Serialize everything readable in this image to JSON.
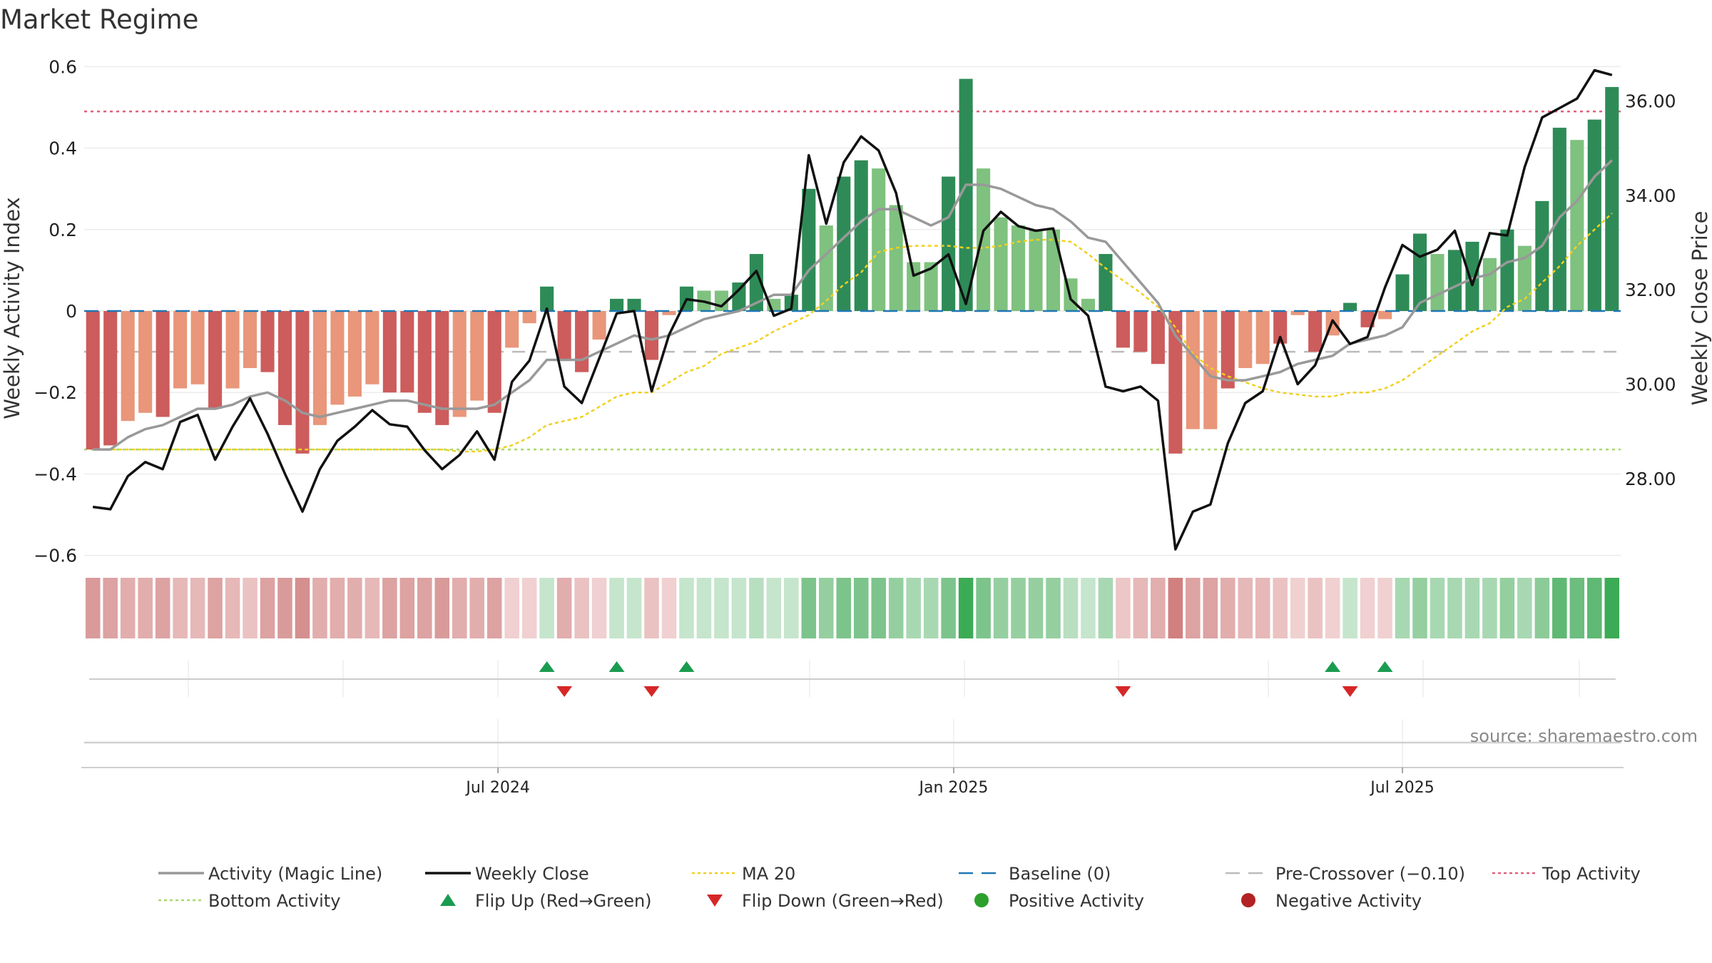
{
  "title": "Market Regime",
  "source": "source: sharemaestro.com",
  "colors": {
    "bar_dark_green": "#2e8b57",
    "bar_light_green": "#7fc17f",
    "bar_dark_red": "#cd5c5c",
    "bar_light_red": "#e9967a",
    "activity_line": "#999999",
    "close_line": "#111111",
    "ma20": "#f0d020",
    "baseline": "#1f77b4",
    "pre_crossover": "#bbbbbb",
    "top_activity": "#e0607e",
    "bottom_activity": "#a8d86e",
    "flip_up": "#1a9c50",
    "flip_down": "#d62728",
    "positive": "#2ca02c",
    "negative": "#b22222"
  },
  "chart_data": {
    "type": "bar",
    "title": "Market Regime",
    "ylabel": "Weekly Activity Index",
    "y2label": "Weekly Close Price",
    "ylim": [
      -0.62,
      0.62
    ],
    "y2lim": [
      26.2,
      36.9
    ],
    "yticks": [
      "0.6",
      "0.4",
      "0.2",
      "0",
      "−0.2",
      "−0.4",
      "−0.6"
    ],
    "ytick_values": [
      0.6,
      0.4,
      0.2,
      0,
      -0.2,
      -0.4,
      -0.6
    ],
    "y2ticks": [
      "36.00",
      "34.00",
      "32.00",
      "30.00",
      "28.00"
    ],
    "y2tick_values": [
      36,
      34,
      32,
      30,
      28
    ],
    "xticks": [
      "Jul 2024",
      "Jan 2025",
      "Jul 2025"
    ],
    "xtick_index": [
      23.2,
      49.3,
      75.0
    ],
    "top_activity": 0.49,
    "bottom_activity": -0.34,
    "pre_crossover": -0.1,
    "baseline": 0,
    "grid": true,
    "legend_position": "bottom",
    "legend": [
      {
        "label": "Activity (Magic Line)",
        "style": "line",
        "color": "#999999"
      },
      {
        "label": "Weekly Close",
        "style": "line",
        "color": "#111111"
      },
      {
        "label": "MA 20",
        "style": "dotted",
        "color": "#f0d020"
      },
      {
        "label": "Baseline (0)",
        "style": "dashed",
        "color": "#1f77b4"
      },
      {
        "label": "Pre-Crossover (−0.10)",
        "style": "dashed",
        "color": "#bbbbbb"
      },
      {
        "label": "Top Activity",
        "style": "dotted",
        "color": "#e0607e"
      },
      {
        "label": "Bottom Activity",
        "style": "dotted",
        "color": "#a8d86e"
      },
      {
        "label": "Flip Up (Red→Green)",
        "style": "triangle-up",
        "color": "#1a9c50"
      },
      {
        "label": "Flip Down (Green→Red)",
        "style": "triangle-down",
        "color": "#d62728"
      },
      {
        "label": "Positive Activity",
        "style": "circle",
        "color": "#2ca02c"
      },
      {
        "label": "Negative Activity",
        "style": "circle",
        "color": "#b22222"
      }
    ],
    "bars": [
      -0.34,
      -0.33,
      -0.27,
      -0.25,
      -0.26,
      -0.19,
      -0.18,
      -0.24,
      -0.19,
      -0.14,
      -0.15,
      -0.28,
      -0.35,
      -0.28,
      -0.23,
      -0.21,
      -0.18,
      -0.2,
      -0.2,
      -0.25,
      -0.28,
      -0.26,
      -0.22,
      -0.25,
      -0.09,
      -0.03,
      0.06,
      -0.12,
      -0.15,
      -0.07,
      0.03,
      0.03,
      -0.12,
      -0.01,
      0.06,
      0.05,
      0.05,
      0.07,
      0.14,
      0.03,
      0.04,
      0.3,
      0.21,
      0.33,
      0.37,
      0.35,
      0.26,
      0.12,
      0.12,
      0.33,
      0.57,
      0.35,
      0.23,
      0.21,
      0.2,
      0.2,
      0.08,
      0.03,
      0.14,
      -0.09,
      -0.1,
      -0.13,
      -0.35,
      -0.29,
      -0.29,
      -0.19,
      -0.14,
      -0.13,
      -0.08,
      -0.01,
      -0.1,
      -0.06,
      0.02,
      -0.04,
      -0.02,
      0.09,
      0.19,
      0.14,
      0.15,
      0.17,
      0.13,
      0.2,
      0.16,
      0.27,
      0.45,
      0.42,
      0.47,
      0.55
    ],
    "bar_shades": [
      "dark",
      "dark",
      "light",
      "light",
      "dark",
      "light",
      "light",
      "dark",
      "light",
      "light",
      "dark",
      "dark",
      "dark",
      "light",
      "light",
      "light",
      "light",
      "dark",
      "dark",
      "dark",
      "dark",
      "light",
      "light",
      "dark",
      "light",
      "light",
      "dark",
      "dark",
      "dark",
      "light",
      "dark",
      "dark",
      "dark",
      "light",
      "dark",
      "light",
      "light",
      "dark",
      "dark",
      "light",
      "dark",
      "dark",
      "light",
      "dark",
      "dark",
      "light",
      "light",
      "light",
      "light",
      "dark",
      "dark",
      "light",
      "light",
      "light",
      "light",
      "light",
      "light",
      "light",
      "dark",
      "dark",
      "dark",
      "dark",
      "dark",
      "light",
      "light",
      "dark",
      "light",
      "light",
      "dark",
      "light",
      "dark",
      "light",
      "dark",
      "dark",
      "light",
      "dark",
      "dark",
      "light",
      "dark",
      "dark",
      "light",
      "dark",
      "light",
      "dark",
      "dark",
      "light",
      "dark",
      "dark"
    ],
    "activity_line": [
      -0.34,
      -0.34,
      -0.31,
      -0.29,
      -0.28,
      -0.26,
      -0.24,
      -0.24,
      -0.23,
      -0.21,
      -0.2,
      -0.22,
      -0.25,
      -0.26,
      -0.25,
      -0.24,
      -0.23,
      -0.22,
      -0.22,
      -0.23,
      -0.24,
      -0.24,
      -0.24,
      -0.23,
      -0.2,
      -0.17,
      -0.12,
      -0.12,
      -0.12,
      -0.1,
      -0.08,
      -0.06,
      -0.07,
      -0.06,
      -0.04,
      -0.02,
      -0.01,
      0.0,
      0.02,
      0.04,
      0.04,
      0.1,
      0.14,
      0.18,
      0.22,
      0.25,
      0.25,
      0.23,
      0.21,
      0.23,
      0.31,
      0.31,
      0.3,
      0.28,
      0.26,
      0.25,
      0.22,
      0.18,
      0.17,
      0.12,
      0.07,
      0.02,
      -0.06,
      -0.11,
      -0.16,
      -0.17,
      -0.17,
      -0.16,
      -0.15,
      -0.13,
      -0.12,
      -0.11,
      -0.08,
      -0.07,
      -0.06,
      -0.04,
      0.02,
      0.04,
      0.06,
      0.08,
      0.09,
      0.12,
      0.13,
      0.16,
      0.23,
      0.27,
      0.33,
      0.37
    ],
    "weekly_close": [
      27.4,
      27.35,
      28.05,
      28.35,
      28.2,
      29.2,
      29.35,
      28.4,
      29.1,
      29.7,
      28.95,
      28.1,
      27.3,
      28.2,
      28.8,
      29.1,
      29.45,
      29.15,
      29.1,
      28.6,
      28.2,
      28.5,
      29.0,
      28.4,
      30.05,
      30.5,
      31.6,
      29.95,
      29.6,
      30.55,
      31.5,
      31.55,
      29.85,
      31.05,
      31.8,
      31.75,
      31.65,
      32.0,
      32.4,
      31.45,
      31.6,
      34.85,
      33.4,
      34.7,
      35.25,
      34.95,
      34.05,
      32.3,
      32.45,
      32.75,
      31.7,
      33.25,
      33.65,
      33.35,
      33.25,
      33.3,
      31.8,
      31.45,
      29.95,
      29.85,
      29.95,
      29.65,
      26.5,
      27.3,
      27.45,
      28.75,
      29.6,
      29.85,
      31.0,
      30.0,
      30.4,
      31.35,
      30.85,
      31.0,
      32.05,
      32.95,
      32.7,
      32.85,
      33.25,
      32.1,
      33.2,
      33.15,
      34.6,
      35.65,
      35.85,
      36.05,
      36.65,
      36.55
    ],
    "ma20": [
      -0.34,
      -0.34,
      -0.34,
      -0.34,
      -0.34,
      -0.34,
      -0.34,
      -0.34,
      -0.34,
      -0.34,
      -0.34,
      -0.34,
      -0.34,
      -0.34,
      -0.34,
      -0.34,
      -0.34,
      -0.34,
      -0.34,
      -0.34,
      -0.34,
      -0.345,
      -0.345,
      -0.34,
      -0.33,
      -0.31,
      -0.28,
      -0.27,
      -0.26,
      -0.235,
      -0.21,
      -0.2,
      -0.2,
      -0.175,
      -0.15,
      -0.135,
      -0.105,
      -0.09,
      -0.075,
      -0.05,
      -0.03,
      -0.01,
      0.025,
      0.065,
      0.095,
      0.145,
      0.155,
      0.16,
      0.16,
      0.16,
      0.155,
      0.155,
      0.16,
      0.17,
      0.175,
      0.175,
      0.17,
      0.14,
      0.105,
      0.075,
      0.045,
      0.01,
      -0.04,
      -0.105,
      -0.14,
      -0.16,
      -0.175,
      -0.19,
      -0.2,
      -0.205,
      -0.21,
      -0.21,
      -0.2,
      -0.2,
      -0.19,
      -0.17,
      -0.14,
      -0.11,
      -0.08,
      -0.05,
      -0.03,
      0.01,
      0.03,
      0.07,
      0.11,
      0.16,
      0.2,
      0.24
    ],
    "strip_colors": [
      "#d99a9a",
      "#dda2a2",
      "#e2adad",
      "#e2adad",
      "#dda2a2",
      "#e6b8b8",
      "#e6b8b8",
      "#dda2a2",
      "#e6b8b8",
      "#eac2c2",
      "#dda2a2",
      "#d99a9a",
      "#d58f8f",
      "#e2adad",
      "#e2adad",
      "#e2adad",
      "#e6b8b8",
      "#dda2a2",
      "#dda2a2",
      "#dda2a2",
      "#d99a9a",
      "#e2adad",
      "#e2adad",
      "#dda2a2",
      "#f0d0d0",
      "#f0d0d0",
      "#c5e5cc",
      "#e2adad",
      "#eac2c2",
      "#f0d0d0",
      "#c5e5cc",
      "#c5e5cc",
      "#eac2c2",
      "#f0d0d0",
      "#c5e5cc",
      "#c5e5cc",
      "#c5e5cc",
      "#c5e5cc",
      "#b8dfc0",
      "#c5e5cc",
      "#c5e5cc",
      "#7cc48c",
      "#95cfa0",
      "#7cc48c",
      "#7cc48c",
      "#7cc48c",
      "#95cfa0",
      "#a8d8b2",
      "#a8d8b2",
      "#7cc48c",
      "#3cab55",
      "#7cc48c",
      "#95cfa0",
      "#95cfa0",
      "#95cfa0",
      "#95cfa0",
      "#b8dfc0",
      "#c5e5cc",
      "#a8d8b2",
      "#ebc7c7",
      "#e6b8b8",
      "#e2adad",
      "#d27f7f",
      "#dda2a2",
      "#dda2a2",
      "#e2adad",
      "#e6b8b8",
      "#e6b8b8",
      "#eac2c2",
      "#f0d0d0",
      "#eac2c2",
      "#f0d0d0",
      "#c5e5cc",
      "#f0d0d0",
      "#f0d0d0",
      "#a8d8b2",
      "#95cfa0",
      "#a8d8b2",
      "#a8d8b2",
      "#a8d8b2",
      "#a8d8b2",
      "#95cfa0",
      "#a8d8b2",
      "#8ccb98",
      "#5fb874",
      "#6cbd7e",
      "#5fb874",
      "#3cab55"
    ],
    "flip_up_index": [
      26,
      30,
      34,
      71,
      74
    ],
    "flip_down_index": [
      27,
      32,
      59,
      72
    ]
  }
}
